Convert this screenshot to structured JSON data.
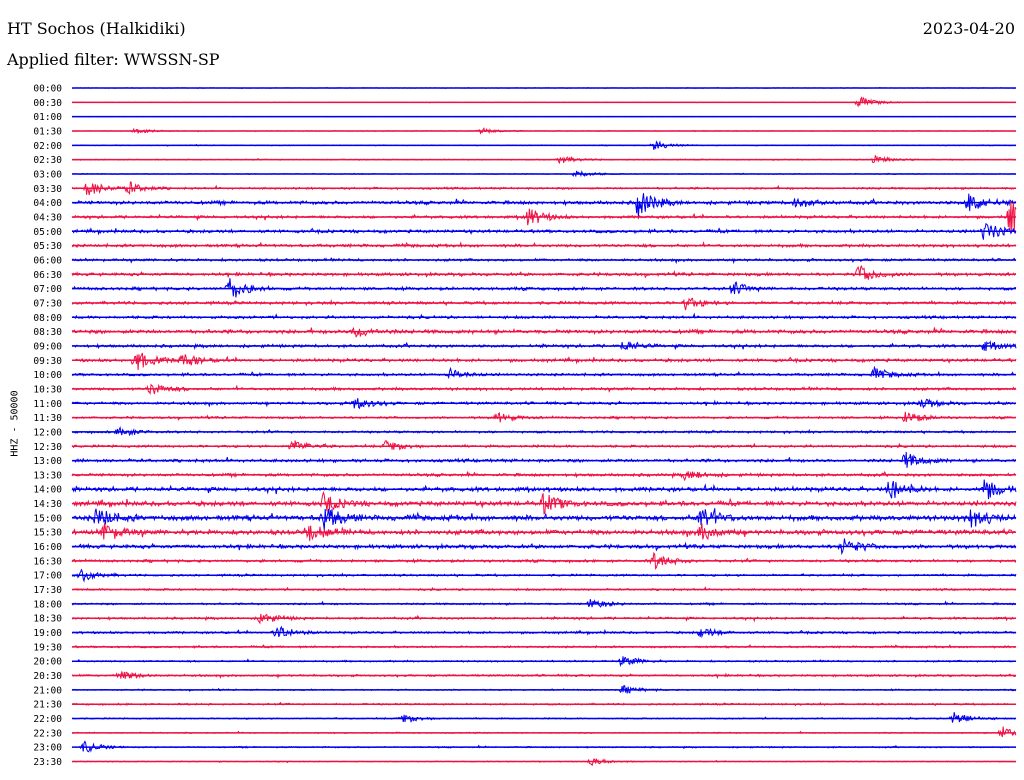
{
  "header": {
    "station": "HT Sochos (Halkidiki)",
    "date": "2023-04-20",
    "filter": "Applied filter: WWSSN-SP"
  },
  "axis": {
    "ylabel": "HHZ - 50000"
  },
  "chart_data": {
    "type": "line",
    "title": "HT Sochos (Halkidiki)",
    "subtitle": "Applied filter: WWSSN-SP",
    "xlabel": "",
    "ylabel": "HHZ - 50000",
    "grid": false,
    "categories": [
      "00:00",
      "00:30",
      "01:00",
      "01:30",
      "02:00",
      "02:30",
      "03:00",
      "03:30",
      "04:00",
      "04:30",
      "05:00",
      "05:30",
      "06:00",
      "06:30",
      "07:00",
      "07:30",
      "08:00",
      "08:30",
      "09:00",
      "09:30",
      "10:00",
      "10:30",
      "11:00",
      "11:30",
      "12:00",
      "12:30",
      "13:00",
      "13:30",
      "14:00",
      "14:30",
      "15:00",
      "15:30",
      "16:00",
      "16:30",
      "17:00",
      "17:30",
      "18:00",
      "18:30",
      "19:00",
      "19:30",
      "20:00",
      "20:30",
      "21:00",
      "21:30",
      "22:00",
      "22:30",
      "23:00",
      "23:30"
    ],
    "trace_colors": [
      "#0000ee",
      "#ee1144"
    ],
    "noise_level": [
      0.3,
      0.3,
      0.2,
      0.4,
      0.5,
      0.6,
      0.5,
      1.2,
      2.0,
      1.6,
      1.8,
      1.7,
      1.5,
      1.8,
      1.7,
      1.7,
      1.6,
      2.2,
      1.7,
      1.8,
      1.5,
      1.6,
      1.6,
      1.3,
      1.3,
      1.4,
      1.8,
      1.7,
      2.4,
      2.7,
      3.0,
      2.8,
      2.2,
      1.5,
      1.2,
      1.1,
      1.1,
      1.3,
      1.3,
      1.1,
      1.0,
      1.2,
      0.8,
      1.0,
      0.8,
      0.7,
      0.8,
      0.5
    ],
    "events": [
      {
        "row": "00:30",
        "minute": 25.0,
        "amplitude": 6
      },
      {
        "row": "01:30",
        "minute": 2.0,
        "amplitude": 3
      },
      {
        "row": "01:30",
        "minute": 13.0,
        "amplitude": 3
      },
      {
        "row": "02:00",
        "minute": 18.5,
        "amplitude": 5
      },
      {
        "row": "02:30",
        "minute": 15.5,
        "amplitude": 4
      },
      {
        "row": "02:30",
        "minute": 25.5,
        "amplitude": 4
      },
      {
        "row": "03:00",
        "minute": 16.0,
        "amplitude": 4
      },
      {
        "row": "03:30",
        "minute": 0.5,
        "amplitude": 8
      },
      {
        "row": "03:30",
        "minute": 1.8,
        "amplitude": 6
      },
      {
        "row": "04:00",
        "minute": 18.0,
        "amplitude": 14
      },
      {
        "row": "04:00",
        "minute": 28.5,
        "amplitude": 10
      },
      {
        "row": "04:00",
        "minute": 23.0,
        "amplitude": 5
      },
      {
        "row": "04:30",
        "minute": 14.5,
        "amplitude": 9
      },
      {
        "row": "04:30",
        "minute": 29.8,
        "amplitude": 18
      },
      {
        "row": "05:00",
        "minute": 29.0,
        "amplitude": 10
      },
      {
        "row": "06:30",
        "minute": 25.0,
        "amplitude": 9
      },
      {
        "row": "07:00",
        "minute": 5.0,
        "amplitude": 12
      },
      {
        "row": "07:00",
        "minute": 21.0,
        "amplitude": 6
      },
      {
        "row": "07:30",
        "minute": 19.5,
        "amplitude": 6
      },
      {
        "row": "08:30",
        "minute": 9.0,
        "amplitude": 6
      },
      {
        "row": "09:00",
        "minute": 17.5,
        "amplitude": 5
      },
      {
        "row": "09:00",
        "minute": 29.0,
        "amplitude": 5
      },
      {
        "row": "09:30",
        "minute": 2.0,
        "amplitude": 11
      },
      {
        "row": "09:30",
        "minute": 3.5,
        "amplitude": 7
      },
      {
        "row": "10:00",
        "minute": 12.0,
        "amplitude": 5
      },
      {
        "row": "10:00",
        "minute": 25.5,
        "amplitude": 6
      },
      {
        "row": "10:30",
        "minute": 2.5,
        "amplitude": 6
      },
      {
        "row": "11:00",
        "minute": 9.0,
        "amplitude": 6
      },
      {
        "row": "11:00",
        "minute": 27.0,
        "amplitude": 5
      },
      {
        "row": "11:30",
        "minute": 13.5,
        "amplitude": 5
      },
      {
        "row": "11:30",
        "minute": 26.5,
        "amplitude": 6
      },
      {
        "row": "12:00",
        "minute": 1.5,
        "amplitude": 5
      },
      {
        "row": "12:30",
        "minute": 7.0,
        "amplitude": 6
      },
      {
        "row": "12:30",
        "minute": 10.0,
        "amplitude": 6
      },
      {
        "row": "13:00",
        "minute": 26.5,
        "amplitude": 8
      },
      {
        "row": "13:30",
        "minute": 19.5,
        "amplitude": 5
      },
      {
        "row": "14:00",
        "minute": 26.0,
        "amplitude": 11
      },
      {
        "row": "14:00",
        "minute": 29.0,
        "amplitude": 10
      },
      {
        "row": "14:30",
        "minute": 15.0,
        "amplitude": 10
      },
      {
        "row": "14:30",
        "minute": 8.0,
        "amplitude": 8
      },
      {
        "row": "15:00",
        "minute": 0.8,
        "amplitude": 10
      },
      {
        "row": "15:00",
        "minute": 8.0,
        "amplitude": 12
      },
      {
        "row": "15:00",
        "minute": 20.0,
        "amplitude": 12
      },
      {
        "row": "15:00",
        "minute": 28.5,
        "amplitude": 12
      },
      {
        "row": "15:30",
        "minute": 1.0,
        "amplitude": 9
      },
      {
        "row": "15:30",
        "minute": 7.5,
        "amplitude": 9
      },
      {
        "row": "15:30",
        "minute": 20.0,
        "amplitude": 8
      },
      {
        "row": "16:00",
        "minute": 24.5,
        "amplitude": 9
      },
      {
        "row": "16:30",
        "minute": 18.5,
        "amplitude": 8
      },
      {
        "row": "17:00",
        "minute": 0.3,
        "amplitude": 6
      },
      {
        "row": "18:00",
        "minute": 16.5,
        "amplitude": 5
      },
      {
        "row": "18:30",
        "minute": 6.0,
        "amplitude": 6
      },
      {
        "row": "19:00",
        "minute": 6.5,
        "amplitude": 7
      },
      {
        "row": "19:00",
        "minute": 20.0,
        "amplitude": 5
      },
      {
        "row": "20:00",
        "minute": 17.5,
        "amplitude": 5
      },
      {
        "row": "20:30",
        "minute": 1.5,
        "amplitude": 5
      },
      {
        "row": "21:00",
        "minute": 17.5,
        "amplitude": 4
      },
      {
        "row": "22:00",
        "minute": 10.5,
        "amplitude": 5
      },
      {
        "row": "22:00",
        "minute": 28.0,
        "amplitude": 8
      },
      {
        "row": "22:30",
        "minute": 29.5,
        "amplitude": 7
      },
      {
        "row": "23:00",
        "minute": 0.4,
        "amplitude": 6
      },
      {
        "row": "23:30",
        "minute": 16.5,
        "amplitude": 4
      }
    ]
  }
}
